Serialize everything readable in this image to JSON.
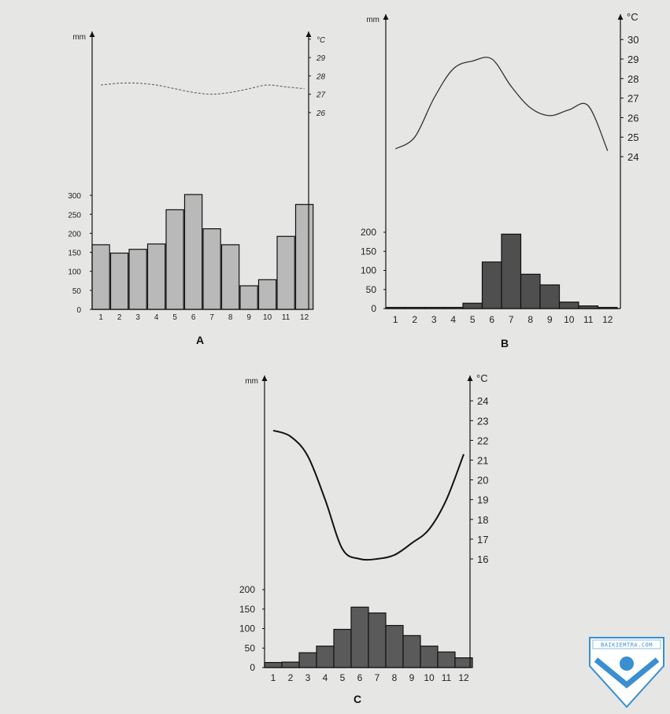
{
  "chart_data": [
    {
      "type": "bar",
      "panel": "A",
      "categories": [
        "1",
        "2",
        "3",
        "4",
        "5",
        "6",
        "7",
        "8",
        "9",
        "10",
        "11",
        "12"
      ],
      "series": [
        {
          "values": [
            170,
            148,
            158,
            172,
            262,
            302,
            212,
            170,
            62,
            78,
            192,
            276
          ]
        },
        {
          "values": [
            27.5,
            27.6,
            27.6,
            27.5,
            27.3,
            27.1,
            27.0,
            27.1,
            27.3,
            27.5,
            27.4,
            27.3
          ]
        }
      ],
      "ylabel": "mm",
      "y2label": "°C",
      "y_ticks": [
        "0",
        "50",
        "100",
        "150",
        "200",
        "250",
        "300"
      ],
      "ylim": [
        0,
        300
      ],
      "y2_ticks": [
        "26",
        "27",
        "28",
        "29",
        "°C"
      ],
      "y2lim": [
        26,
        29
      ],
      "bar_color": "#b9b9b9"
    },
    {
      "type": "bar",
      "panel": "B",
      "categories": [
        "1",
        "2",
        "3",
        "4",
        "5",
        "6",
        "7",
        "8",
        "9",
        "10",
        "11",
        "12"
      ],
      "series": [
        {
          "values": [
            1,
            1,
            2,
            1,
            14,
            122,
            195,
            90,
            62,
            17,
            7,
            1
          ]
        },
        {
          "values": [
            24.4,
            25.0,
            27.0,
            28.5,
            28.9,
            29.0,
            27.6,
            26.5,
            26.1,
            26.4,
            26.6,
            24.3
          ]
        }
      ],
      "ylabel": "mm",
      "y2label": "°C",
      "y_ticks": [
        "0",
        "50",
        "100",
        "150",
        "200"
      ],
      "ylim": [
        0,
        200
      ],
      "y2_ticks": [
        "24",
        "25",
        "26",
        "27",
        "28",
        "29",
        "30"
      ],
      "y2lim": [
        24,
        30
      ],
      "bar_color": "#4f4f4f"
    },
    {
      "type": "bar",
      "panel": "C",
      "categories": [
        "1",
        "2",
        "3",
        "4",
        "5",
        "6",
        "7",
        "8",
        "9",
        "10",
        "11",
        "12"
      ],
      "series": [
        {
          "values": [
            13,
            14,
            38,
            55,
            98,
            155,
            140,
            108,
            82,
            55,
            40,
            25
          ]
        },
        {
          "values": [
            22.5,
            22.2,
            21.2,
            19.0,
            16.5,
            16.0,
            16.0,
            16.2,
            16.8,
            17.5,
            19.0,
            21.3
          ]
        }
      ],
      "ylabel": "mm",
      "y2label": "°C",
      "y_ticks": [
        "0",
        "50",
        "100",
        "150",
        "200"
      ],
      "ylim": [
        0,
        200
      ],
      "y2_ticks": [
        "16",
        "17",
        "18",
        "19",
        "20",
        "21",
        "22",
        "23",
        "24"
      ],
      "y2lim": [
        16,
        24
      ],
      "bar_color": "#5a5a5a"
    }
  ],
  "watermark": {
    "text": "BAIKIEMTRA.COM",
    "color": "#3a8fd0"
  }
}
